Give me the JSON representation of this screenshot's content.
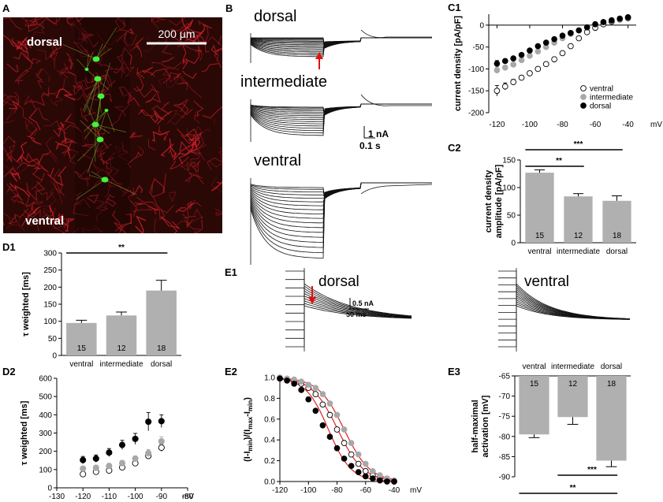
{
  "panels": {
    "a": "A",
    "b": "B",
    "c1": "C1",
    "c2": "C2",
    "d1": "D1",
    "d2": "D2",
    "e1": "E1",
    "e2": "E2",
    "e3": "E3"
  },
  "micrograph": {
    "top_label": "dorsal",
    "bottom_label": "ventral",
    "scale_bar_label": "200 μm",
    "background_color": "#2a0806",
    "fiber_color": "#d0202a",
    "neuron_color": "#40ff40"
  },
  "traces_b": {
    "titles": [
      "dorsal",
      "intermediate",
      "ventral"
    ],
    "scale_current": "1 nA",
    "scale_time": "0.1 s",
    "arrow_color": "#e01010"
  },
  "traces_e1": {
    "titles": [
      "dorsal",
      "ventral"
    ],
    "scale_current": "0.5 nA",
    "scale_time": "50 ms"
  },
  "colors": {
    "bar": "#b0b0b0",
    "ventral_marker": "#ffffff",
    "intermediate_marker": "#a8a8a8",
    "dorsal_marker": "#000000",
    "fit_line": "#e02020"
  },
  "chart_data": [
    {
      "id": "C1",
      "type": "scatter",
      "xlabel": "mV",
      "ylabel": "current density [pA/pF]",
      "xlim": [
        -125,
        -35
      ],
      "ylim": [
        -200,
        25
      ],
      "xticks": [
        -120,
        -100,
        -80,
        -60,
        -40
      ],
      "yticks": [
        -200,
        -150,
        -100,
        -50,
        0
      ],
      "legend_position": "bottom-right",
      "x": [
        -120,
        -115,
        -110,
        -105,
        -100,
        -95,
        -90,
        -85,
        -80,
        -75,
        -70,
        -65,
        -60,
        -55,
        -50,
        -45,
        -40
      ],
      "series": [
        {
          "name": "ventral",
          "marker": "open",
          "values": [
            -150,
            -140,
            -130,
            -120,
            -110,
            -100,
            -89,
            -78,
            -64,
            -48,
            -30,
            -16,
            -6,
            2,
            8,
            13,
            16
          ]
        },
        {
          "name": "intermediate",
          "marker": "gray",
          "values": [
            -103,
            -97,
            -90,
            -80,
            -70,
            -60,
            -50,
            -40,
            -30,
            -20,
            -12,
            -5,
            2,
            7,
            11,
            14,
            17
          ]
        },
        {
          "name": "dorsal",
          "marker": "filled",
          "values": [
            -88,
            -82,
            -76,
            -68,
            -58,
            -48,
            -40,
            -32,
            -24,
            -18,
            -12,
            -5,
            2,
            7,
            11,
            15,
            18
          ]
        }
      ],
      "error_y": [
        12,
        8,
        6,
        5,
        5,
        4,
        4,
        4,
        3,
        3,
        3,
        3,
        2,
        2,
        2,
        2,
        2
      ]
    },
    {
      "id": "C2",
      "type": "bar",
      "ylabel": "current density amplitude [pA/pF]",
      "ylim": [
        0,
        150
      ],
      "yticks": [
        0,
        50,
        100,
        150
      ],
      "categories": [
        "ventral",
        "intermediate",
        "dorsal"
      ],
      "values": [
        127,
        84,
        76
      ],
      "errors": [
        5,
        5,
        9
      ],
      "n": [
        "15",
        "12",
        "18"
      ],
      "significance": [
        {
          "from": 0,
          "to": 1,
          "label": "**"
        },
        {
          "from": 0,
          "to": 2,
          "label": "***"
        }
      ]
    },
    {
      "id": "D1",
      "type": "bar",
      "ylabel": "τ weighted [ms]",
      "ylim": [
        0,
        300
      ],
      "yticks": [
        0,
        50,
        100,
        150,
        200,
        250,
        300
      ],
      "categories": [
        "ventral",
        "intermediate",
        "dorsal"
      ],
      "values": [
        95,
        117,
        190
      ],
      "errors": [
        8,
        10,
        30
      ],
      "n": [
        "15",
        "12",
        "18"
      ],
      "significance": [
        {
          "from": 0,
          "to": 2,
          "label": "**"
        }
      ]
    },
    {
      "id": "D2",
      "type": "scatter",
      "xlabel": "mV",
      "ylabel": "τ weighted [ms]",
      "xlim": [
        -130,
        -80
      ],
      "ylim": [
        0,
        600
      ],
      "xticks": [
        -130,
        -120,
        -110,
        -100,
        -90,
        -80
      ],
      "yticks": [
        0,
        100,
        200,
        300,
        400,
        500,
        600
      ],
      "x": [
        -120,
        -115,
        -110,
        -105,
        -100,
        -95,
        -90
      ],
      "series": [
        {
          "name": "ventral",
          "marker": "open",
          "values": [
            75,
            88,
            95,
            112,
            135,
            175,
            220
          ]
        },
        {
          "name": "intermediate",
          "marker": "gray",
          "values": [
            105,
            110,
            120,
            135,
            160,
            190,
            255
          ]
        },
        {
          "name": "dorsal",
          "marker": "filled",
          "values": [
            152,
            160,
            193,
            235,
            268,
            362,
            365
          ]
        }
      ],
      "error_y": [
        [
          10,
          10,
          10,
          12,
          15,
          15,
          20
        ],
        [
          12,
          12,
          12,
          15,
          15,
          20,
          25
        ],
        [
          20,
          20,
          22,
          25,
          30,
          50,
          35
        ]
      ]
    },
    {
      "id": "E2",
      "type": "scatter",
      "xlabel": "mV",
      "ylabel": "(I-Imin)/(Imax-Imin)",
      "xlim": [
        -120,
        -40
      ],
      "ylim": [
        0,
        1
      ],
      "xticks": [
        -120,
        -100,
        -80,
        -60,
        -40
      ],
      "yticks": [
        0.0,
        0.2,
        0.4,
        0.6,
        0.8,
        1.0
      ],
      "x": [
        -120,
        -115,
        -110,
        -105,
        -100,
        -95,
        -90,
        -85,
        -80,
        -75,
        -70,
        -65,
        -60,
        -55,
        -50,
        -45,
        -40
      ],
      "series": [
        {
          "name": "ventral",
          "marker": "open",
          "v_half": -79.5,
          "slope": 9,
          "values": [
            0.99,
            0.98,
            0.96,
            0.94,
            0.9,
            0.84,
            0.74,
            0.64,
            0.5,
            0.37,
            0.26,
            0.17,
            0.1,
            0.06,
            0.03,
            0.01,
            0.0
          ]
        },
        {
          "name": "intermediate",
          "marker": "gray",
          "v_half": -75,
          "slope": 9,
          "values": [
            1.0,
            0.99,
            0.98,
            0.96,
            0.93,
            0.9,
            0.84,
            0.75,
            0.64,
            0.5,
            0.37,
            0.26,
            0.17,
            0.1,
            0.06,
            0.03,
            0.01
          ]
        },
        {
          "name": "dorsal",
          "marker": "filled",
          "v_half": -86,
          "slope": 8,
          "values": [
            0.99,
            0.97,
            0.94,
            0.88,
            0.79,
            0.68,
            0.54,
            0.43,
            0.32,
            0.22,
            0.15,
            0.09,
            0.05,
            0.03,
            0.01,
            0.0,
            0.0
          ]
        }
      ]
    },
    {
      "id": "E3",
      "type": "bar",
      "ylabel": "half-maximal activation [mV]",
      "ylim": [
        -90,
        -65
      ],
      "yticks": [
        -90,
        -85,
        -80,
        -75,
        -70,
        -65
      ],
      "baseline": -65,
      "categories": [
        "ventral",
        "intermediate",
        "dorsal"
      ],
      "values": [
        -79.5,
        -75.2,
        -86
      ],
      "errors": [
        0.8,
        1.8,
        1.5
      ],
      "n": [
        "15",
        "12",
        "18"
      ],
      "significance": [
        {
          "from": 1,
          "to": 2,
          "label": "***"
        },
        {
          "from": 0,
          "to": 2,
          "label": "**"
        }
      ]
    }
  ]
}
